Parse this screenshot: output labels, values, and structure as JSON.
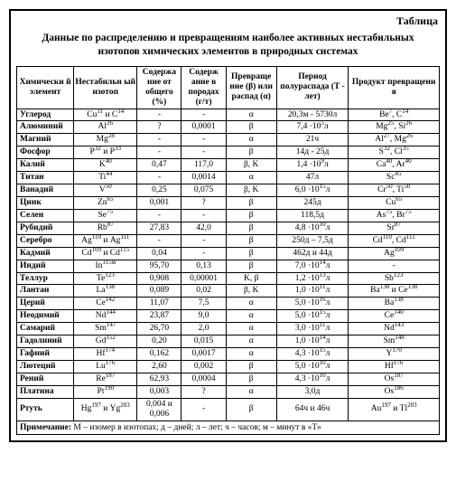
{
  "label": "Таблица",
  "title": "Данные по распределению и превращениям наиболее активных нестабильных изотопов химических элементов в природных системах",
  "columns": [
    "Химически й элемент",
    "Нестабильн ый изотоп",
    "Содержа ние от общего (%)",
    "Содерж ание в породах (г/т)",
    "Превраще ние (β) или распад (α)",
    "Период полураспада (Т - лет)",
    "Продукт превращени я"
  ],
  "rows": [
    [
      "Углерод",
      "Cu<sup>11</sup> и С<sup>14</sup>",
      "-",
      "-",
      "α",
      "20,3м - 5730л",
      "Be<sup>7</sup>, C<sup>14</sup>"
    ],
    [
      "Алюминий",
      "Al<sup>26</sup>",
      "?",
      "0,0001",
      "β",
      "7,4 ·10<sup>5</sup>л",
      "Mg<sup>25</sup>, Si<sup>26</sup>"
    ],
    [
      "Магний",
      "Mg<sup>28</sup>",
      "-",
      "-",
      "α",
      "21ч",
      "Al<sup>27</sup>, Mg<sup>26</sup>"
    ],
    [
      "Фосфор",
      "P<sup>32</sup> и P<sup>33</sup>",
      "-",
      "-",
      "β",
      "14д - 25д",
      "S<sup>32</sup>, Cl<sup>35</sup>"
    ],
    [
      "Калий",
      "K<sup>40</sup>",
      "0,47",
      "117,0",
      "β, K",
      "1,4 ·10<sup>9</sup>л",
      "Ca<sup>40</sup>, Ar<sup>40</sup>"
    ],
    [
      "Титан",
      "Ti<sup>44</sup>",
      "-",
      "0,0014",
      "α",
      "47л",
      "Sc<sup>45</sup>"
    ],
    [
      "Ванадий",
      "V<sup>50</sup>",
      "0,25",
      "0,075",
      "β, K",
      "6,0 ·10<sup>15</sup>л",
      "Cr<sup>50</sup>, Ti<sup>50</sup>"
    ],
    [
      "Цинк",
      "Zn<sup>65</sup>",
      "0,001",
      "?",
      "β",
      "245д",
      "Cu<sup>65</sup>"
    ],
    [
      "Селен",
      "Se<sup>75</sup>",
      "-",
      "-",
      "β",
      "118,5д",
      "As<sup>75</sup>, Br<sup>75</sup>"
    ],
    [
      "Рубидий",
      "Rb<sup>87</sup>",
      "27,83",
      "42,0",
      "β",
      "4,8 ·10<sup>10</sup>л",
      "Sr<sup>87</sup>"
    ],
    [
      "Серебро",
      "Ag<sup>110</sup> и Ag<sup>111</sup>",
      "-",
      "-",
      "β",
      "250д – 7,5д",
      "Cd<sup>110</sup>, Cd<sup>111</sup>"
    ],
    [
      "Кадмий",
      "Cd<sup>109</sup> и Cd<sup>115</sup>",
      "0,04",
      "-",
      "β",
      "462д и 44д",
      "Ag<sup>109</sup>"
    ],
    [
      "Индий",
      "In<sup>115м</sup>",
      "95,70",
      "0,13",
      "β",
      "7,0 ·10<sup>14</sup>л",
      "-"
    ],
    [
      "Теллур",
      "Te<sup>123</sup>",
      "0,908",
      "0,00001",
      "K, β",
      "1,2 ·10<sup>13</sup>л",
      "Sb<sup>123</sup>"
    ],
    [
      "Лантан",
      "La<sup>138</sup>",
      "0,089",
      "0,02",
      "β, K",
      "1,0 ·10<sup>11</sup>л",
      "Ba<sup>138</sup> и Ce<sup>138</sup>"
    ],
    [
      "Церий",
      "Ce<sup>142</sup>",
      "11,07",
      "7,5",
      "α",
      "5,0 ·10<sup>16</sup>л",
      "Ba<sup>138</sup>"
    ],
    [
      "Неодимий",
      "Nd<sup>144</sup>",
      "23,87",
      "9,0",
      "α",
      "5,0 ·10<sup>15</sup>л",
      "Ce<sup>140</sup>"
    ],
    [
      "Самарий",
      "Sm<sup>147</sup>",
      "26,70",
      "2,0",
      "α",
      "3,0 ·10<sup>11</sup>л",
      "Nd<sup>143</sup>"
    ],
    [
      "Гадолиний",
      "Gd<sup>152</sup>",
      "0,20",
      "0,015",
      "α",
      "1,0 ·10<sup>14</sup>л",
      "Sm<sup>148</sup>"
    ],
    [
      "Гафний",
      "Hf<sup>174</sup>",
      "0,162",
      "0,0017",
      "α",
      "4,3 ·10<sup>15</sup>л",
      "Y<sup>170</sup>"
    ],
    [
      "Лютеций",
      "Lu<sup>176</sup>",
      "2,60",
      "0,002",
      "β",
      "5,0 ·10<sup>10</sup>л",
      "Hf<sup>176</sup>"
    ],
    [
      "Рений",
      "Re<sup>187</sup>",
      "62,93",
      "0,0004",
      "β",
      "4,3 ·10<sup>10</sup>л",
      "Os<sup>187</sup>"
    ],
    [
      "Платина",
      "Pt<sup>190</sup>",
      "0,003",
      "?",
      "α",
      "3,0д",
      "Os<sup>186</sup>"
    ],
    [
      "Ртуть",
      "Hg<sup>197</sup> и Yg<sup>203</sup>",
      "0,004 и 0,006",
      "-",
      "β",
      "64ч и 46ч",
      "Au<sup>197</sup> и Tl<sup>203</sup>"
    ]
  ],
  "note_label": "Примечание:",
  "note_text": "М – изомер в изотопах; д – дней; л – лет; ч – часов; м – минут в «Т»"
}
